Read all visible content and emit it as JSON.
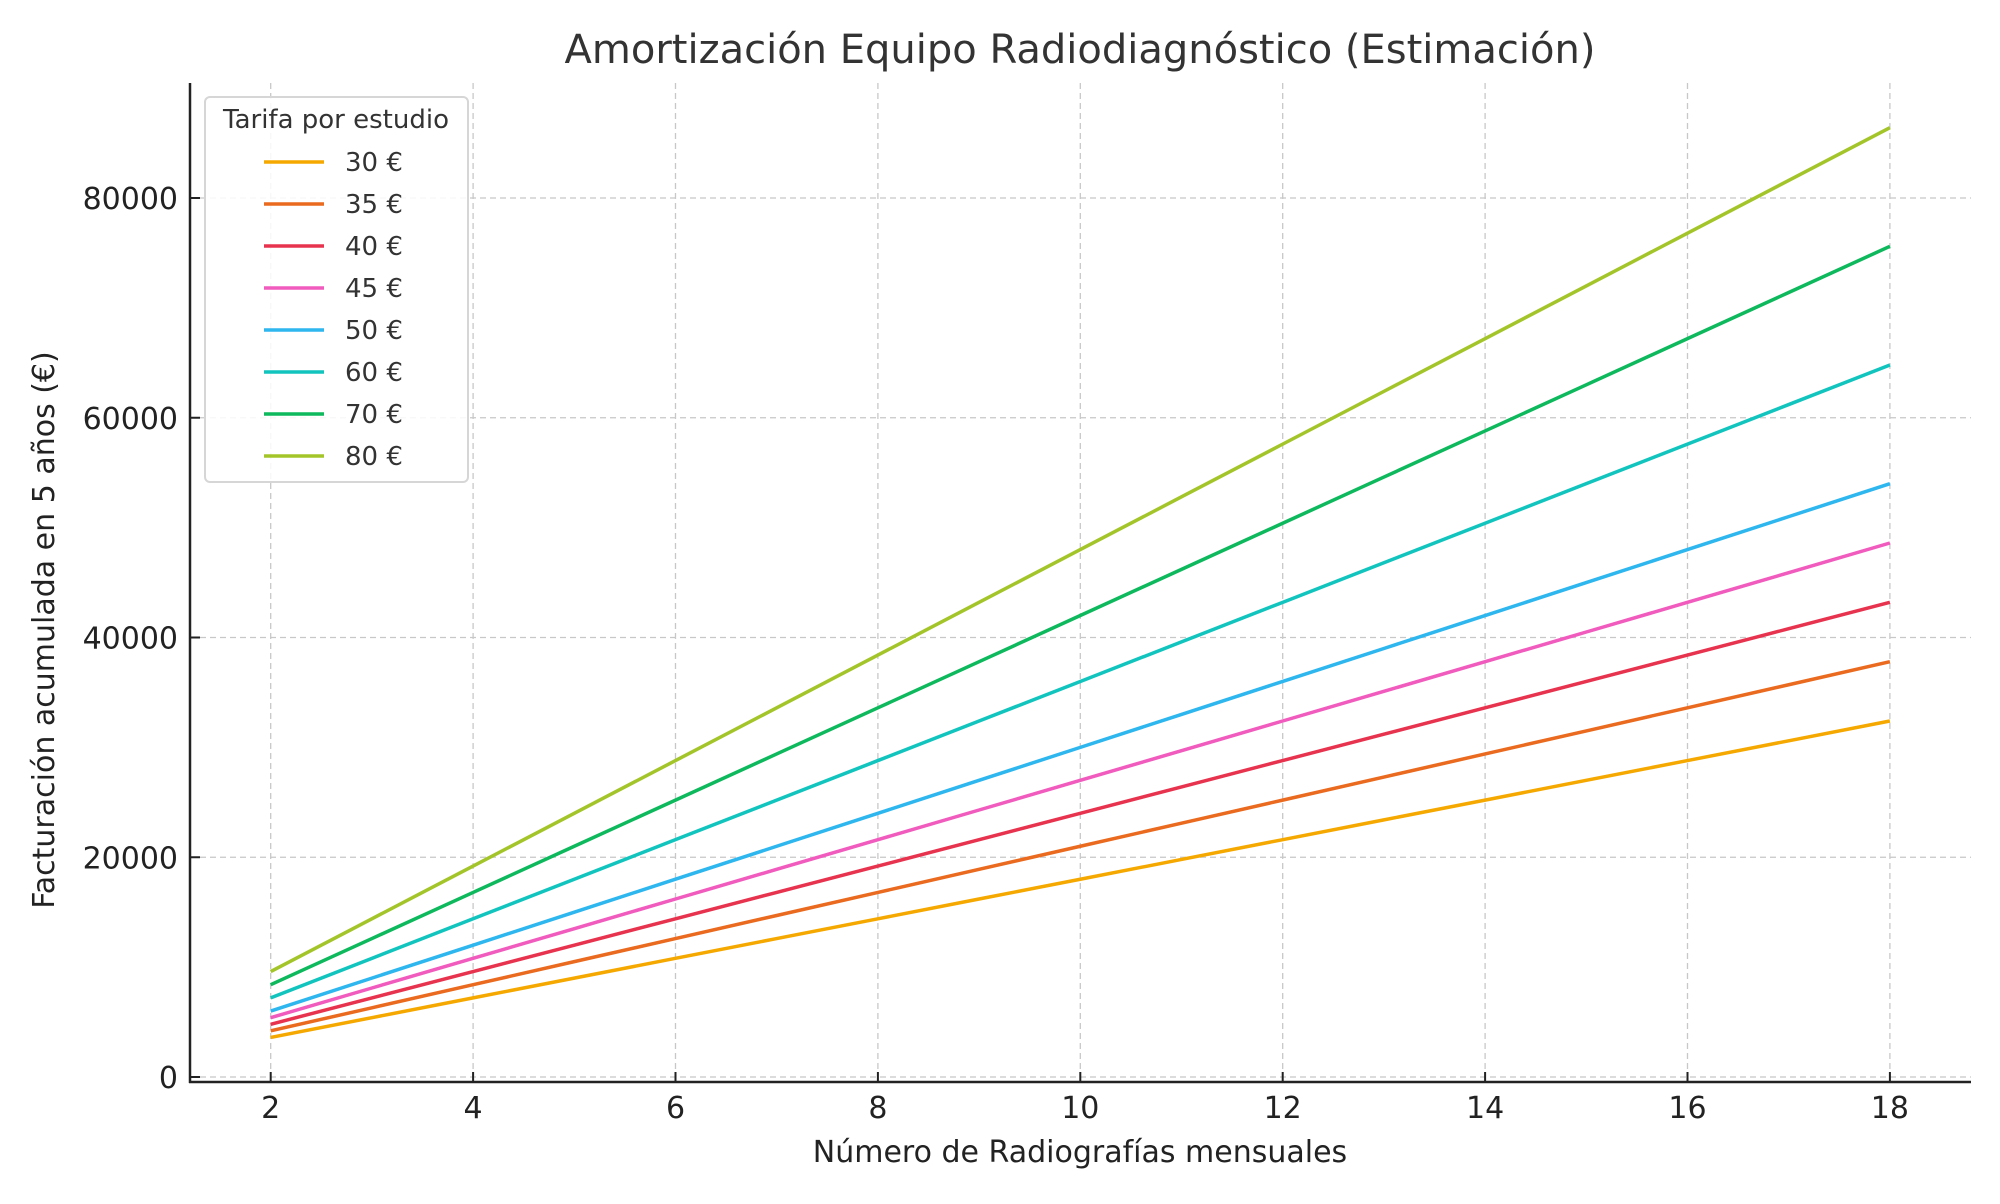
{
  "chart_data": {
    "type": "line",
    "title": "Amortización Equipo Radiodiagnóstico (Estimación)",
    "xlabel": "Número de Radiografías mensuales",
    "ylabel": "Facturación acumulada en 5 años (€)",
    "xlim": [
      1.2,
      18.8
    ],
    "ylim": [
      -500,
      90700
    ],
    "xticks": [
      2,
      4,
      6,
      8,
      10,
      12,
      14,
      16,
      18
    ],
    "yticks": [
      0,
      20000,
      40000,
      60000,
      80000
    ],
    "grid": true,
    "legend": {
      "title": "Tarifa por estudio",
      "placement": "top-left"
    },
    "x": [
      2,
      3,
      4,
      5,
      6,
      7,
      8,
      9,
      10,
      11,
      12,
      13,
      14,
      15,
      16,
      17,
      18
    ],
    "series": [
      {
        "name": "30 €",
        "fee": 30,
        "color": "#f5a800",
        "values": [
          3600,
          5400,
          7200,
          9000,
          10800,
          12600,
          14400,
          16200,
          18000,
          19800,
          21600,
          23400,
          25200,
          27000,
          28800,
          30600,
          32400
        ]
      },
      {
        "name": "35 €",
        "fee": 35,
        "color": "#ea6a1f",
        "values": [
          4200,
          6300,
          8400,
          10500,
          12600,
          14700,
          16800,
          18900,
          21000,
          23100,
          25200,
          27300,
          29400,
          31500,
          33600,
          35700,
          37800
        ]
      },
      {
        "name": "40 €",
        "fee": 40,
        "color": "#e8334f",
        "values": [
          4800,
          7200,
          9600,
          12000,
          14400,
          16800,
          19200,
          21600,
          24000,
          26400,
          28800,
          31200,
          33600,
          36000,
          38400,
          40800,
          43200
        ]
      },
      {
        "name": "45 €",
        "fee": 45,
        "color": "#f05bbd",
        "values": [
          5400,
          8100,
          10800,
          13500,
          16200,
          18900,
          21600,
          24300,
          27000,
          29700,
          32400,
          35100,
          37800,
          40500,
          43200,
          45900,
          48600
        ]
      },
      {
        "name": "50 €",
        "fee": 50,
        "color": "#2eb6ef",
        "values": [
          6000,
          9000,
          12000,
          15000,
          18000,
          21000,
          24000,
          27000,
          30000,
          33000,
          36000,
          39000,
          42000,
          45000,
          48000,
          51000,
          54000
        ]
      },
      {
        "name": "60 €",
        "fee": 60,
        "color": "#12c4be",
        "values": [
          7200,
          10800,
          14400,
          18000,
          21600,
          25200,
          28800,
          32400,
          36000,
          39600,
          43200,
          46800,
          50400,
          54000,
          57600,
          61200,
          64800
        ]
      },
      {
        "name": "70 €",
        "fee": 70,
        "color": "#0db95c",
        "values": [
          8400,
          12600,
          16800,
          21000,
          25200,
          29400,
          33600,
          37800,
          42000,
          46200,
          50400,
          54600,
          58800,
          63000,
          67200,
          71400,
          75600
        ]
      },
      {
        "name": "80 €",
        "fee": 80,
        "color": "#a3c52a",
        "values": [
          9600,
          14400,
          19200,
          24000,
          28800,
          33600,
          38400,
          43200,
          48000,
          52800,
          57600,
          62400,
          67200,
          72000,
          76800,
          81600,
          86400
        ]
      }
    ]
  }
}
